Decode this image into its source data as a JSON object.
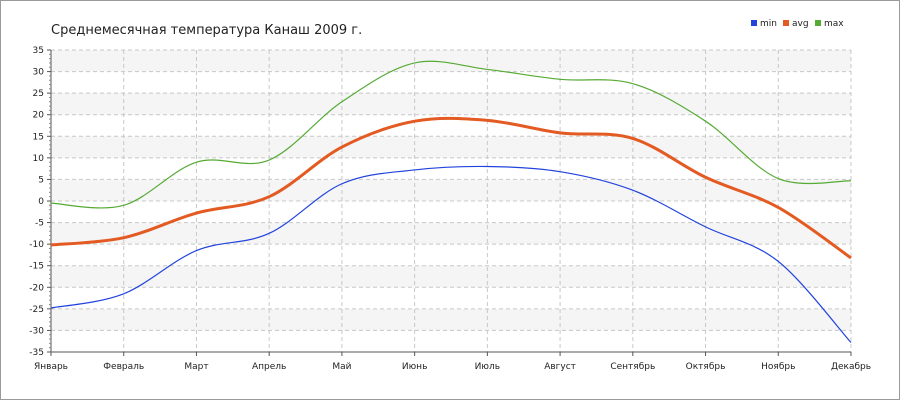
{
  "chart_data": {
    "type": "line",
    "title": "Среднемесячная температура Канаш  2009 г.",
    "categories": [
      "Январь",
      "Февраль",
      "Март",
      "Апрель",
      "Май",
      "Июнь",
      "Июль",
      "Август",
      "Сентябрь",
      "Октябрь",
      "Ноябрь",
      "Декабрь"
    ],
    "y_ticks": [
      35,
      30,
      25,
      20,
      15,
      10,
      5,
      0,
      -5,
      -10,
      -15,
      -20,
      -25,
      -30,
      -35
    ],
    "ylim": [
      -35,
      35
    ],
    "grid": true,
    "legend_position": "top-right",
    "series": [
      {
        "name": "min",
        "color": "#2244dd",
        "values": [
          -24.8,
          -21.5,
          -11.5,
          -7.5,
          4.0,
          7.2,
          8.0,
          6.8,
          2.5,
          -6.0,
          -14.0,
          -32.8
        ]
      },
      {
        "name": "avg",
        "color": "#e35b22",
        "values": [
          -10.2,
          -8.5,
          -2.8,
          1.0,
          12.5,
          18.5,
          18.7,
          15.8,
          14.5,
          5.5,
          -1.5,
          -13.2
        ]
      },
      {
        "name": "max",
        "color": "#55aa33",
        "values": [
          -0.5,
          -1.0,
          9.0,
          9.5,
          23.0,
          32.0,
          30.5,
          28.2,
          27.2,
          18.5,
          5.2,
          4.7
        ]
      }
    ]
  }
}
